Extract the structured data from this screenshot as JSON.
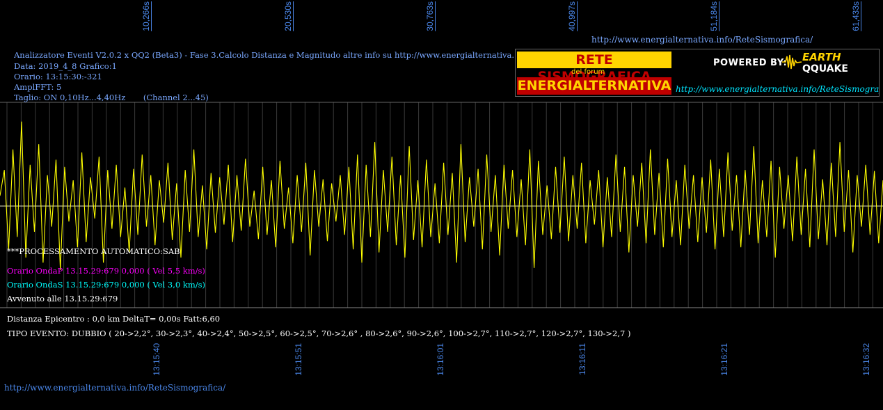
{
  "chart_data": {
    "type": "line",
    "title": "Analizzatore Eventi V2.0.2 x QQ2 (Beta3) - Fase 3.Calcolo Distanza e Magnitudo altre info su http://www.energialternativa.info/ReteSism",
    "top_axis_ticks": [
      "10,266s",
      "20,530s",
      "30,763s",
      "40,997s",
      "51,184s",
      "61,433s"
    ],
    "bottom_axis_ticks": [
      "13:15:40",
      "13:15:51",
      "13:16:01",
      "13:16:11",
      "13:16:21",
      "13:16:32"
    ],
    "series": [
      {
        "color": "#ffff00",
        "values": [
          0.1,
          0.35,
          -0.42,
          0.55,
          -0.3,
          0.82,
          -0.5,
          0.4,
          -0.25,
          0.6,
          -0.55,
          0.3,
          -0.2,
          0.45,
          -0.62,
          0.38,
          -0.15,
          0.25,
          -0.4,
          0.52,
          -0.35,
          0.28,
          -0.12,
          0.48,
          -0.55,
          0.35,
          -0.22,
          0.4,
          -0.3,
          0.18,
          -0.45,
          0.36,
          -0.28,
          0.5,
          -0.2,
          0.3,
          -0.38,
          0.25,
          -0.16,
          0.42,
          -0.33,
          0.22,
          -0.5,
          0.35,
          -0.25,
          0.55,
          -0.3,
          0.2,
          -0.42,
          0.32,
          -0.26,
          0.28,
          -0.18,
          0.4,
          -0.35,
          0.3,
          -0.24,
          0.46,
          -0.2,
          0.15,
          -0.32,
          0.38,
          -0.28,
          0.25,
          -0.4,
          0.44,
          -0.22,
          0.18,
          -0.36,
          0.3,
          -0.25,
          0.42,
          -0.48,
          0.35,
          -0.2,
          0.26,
          -0.34,
          0.22,
          -0.15,
          0.3,
          -0.28,
          0.38,
          -0.42,
          0.5,
          -0.55,
          0.4,
          -0.3,
          0.62,
          -0.45,
          0.35,
          -0.25,
          0.48,
          -0.38,
          0.3,
          -0.5,
          0.58,
          -0.33,
          0.25,
          -0.4,
          0.45,
          -0.3,
          0.22,
          -0.36,
          0.42,
          -0.28,
          0.32,
          -0.55,
          0.6,
          -0.35,
          0.28,
          -0.2,
          0.36,
          -0.42,
          0.5,
          -0.25,
          0.3,
          -0.48,
          0.4,
          -0.22,
          0.35,
          -0.3,
          0.26,
          -0.38,
          0.55,
          -0.6,
          0.44,
          -0.28,
          0.2,
          -0.32,
          0.38,
          -0.26,
          0.48,
          -0.34,
          0.3,
          -0.22,
          0.42,
          -0.36,
          0.25,
          -0.18,
          0.35,
          -0.4,
          0.28,
          -0.3,
          0.5,
          -0.25,
          0.38,
          -0.45,
          0.3,
          -0.2,
          0.42,
          -0.36,
          0.55,
          -0.28,
          0.32,
          -0.4,
          0.46,
          -0.3,
          0.25,
          -0.38,
          0.4,
          -0.22,
          0.3,
          -0.35,
          0.28,
          -0.26,
          0.45,
          -0.42,
          0.36,
          -0.3,
          0.52,
          -0.24,
          0.3,
          -0.4,
          0.35,
          -0.28,
          0.58,
          -0.36,
          0.25,
          -0.3,
          0.44,
          -0.5,
          0.38,
          -0.22,
          0.3,
          -0.34,
          0.48,
          -0.28,
          0.36,
          -0.4,
          0.55,
          -0.32,
          0.26,
          -0.38,
          0.42,
          -0.3,
          0.62,
          -0.25,
          0.35,
          -0.45,
          0.3,
          -0.2,
          0.4,
          -0.28,
          0.34,
          -0.36,
          0.25
        ]
      }
    ],
    "ylim": [
      -1,
      1
    ],
    "grid": true
  },
  "header": {
    "url_top": "http://www.energialternativa.info/ReteSismografica/",
    "info_title": "Analizzatore Eventi V2.0.2 x QQ2 (Beta3) - Fase 3.Calcolo Distanza e Magnitudo altre info su http://www.energialternativa.info/ReteSism",
    "data_line": "Data: 2019_4_8 Grafico:1",
    "orario_line": "Orario: 13:15:30:-321",
    "amplfft_line": "AmplFFT: 5",
    "taglio_line": "Taglio: ON 0,10Hz...4,40Hz       (Channel 2...45)"
  },
  "logo": {
    "rete": "RETE SISMOGRAFICA",
    "forum": "del forum",
    "energialternativa": "ENERGIALTERNATIVA",
    "powered": "POWERED BY:",
    "earth": "EARTH",
    "qquake": "QQUAKE",
    "url": "http://www.energialternativa.info/ReteSismografica"
  },
  "results": {
    "processing": "***PROCESSAMENTO AUTOMATICO:SAB",
    "onda_p": "Orario OndaP 13.15.29:679  0,000 ( Vel 5,5 km/s)",
    "onda_s": "Orario OndaS 13.15.29:679  0,000 ( Vel 3,0 km/s)",
    "avvenuto": "Avvenuto alle 13.15.29:679",
    "distanza": "Distanza Epicentro : 0,0 km DeltaT= 0,00s  Fatt:6,60",
    "tipo_evento": "TIPO EVENTO: DUBBIO ( 20->2,2°, 30->2,3°, 40->2,4°, 50->2,5°, 60->2,5°, 70->2,6° , 80->2,6°, 90->2,6°, 100->2,7°, 110->2,7°, 120->2,7°, 130->2,7 )"
  },
  "footer": {
    "url": "http://www.energialternativa.info/ReteSismografica/"
  },
  "colors": {
    "trace": "#ffff00",
    "axis_labels": "#4a86e8",
    "onda_p": "#ff00ff",
    "onda_s": "#00ffff",
    "info": "#7aa8ff"
  }
}
